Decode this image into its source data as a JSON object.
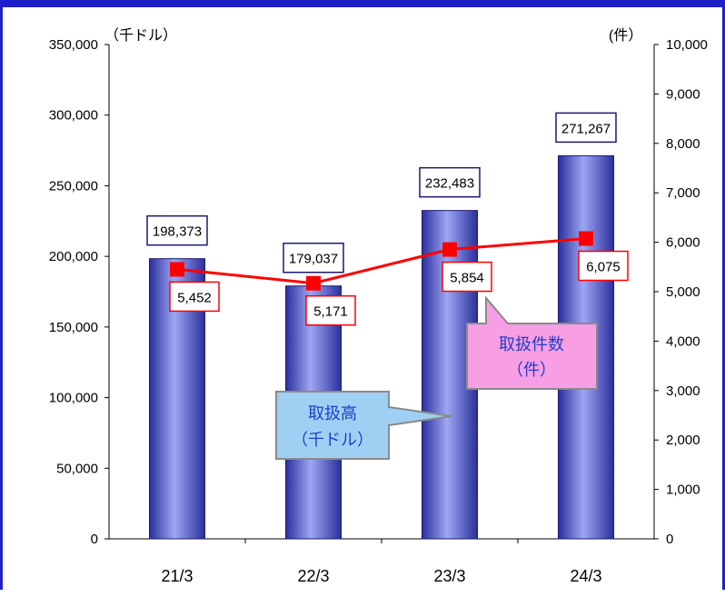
{
  "chart_data": {
    "type": "bar",
    "categories": [
      "21/3",
      "22/3",
      "23/3",
      "24/3"
    ],
    "series": [
      {
        "name": "取扱高",
        "axis": "left",
        "type": "bar",
        "values": [
          198373,
          179037,
          232483,
          271267
        ],
        "labels": [
          "198,373",
          "179,037",
          "232,483",
          "271,267"
        ]
      },
      {
        "name": "取扱件数",
        "axis": "right",
        "type": "line",
        "values": [
          5452,
          5171,
          5854,
          6075
        ],
        "labels": [
          "5,452",
          "5,171",
          "5,854",
          "6,075"
        ]
      }
    ],
    "left_axis": {
      "unit": "（千ドル）",
      "min": 0,
      "max": 350000,
      "step": 50000,
      "ticks": [
        "0",
        "50,000",
        "100,000",
        "150,000",
        "200,000",
        "250,000",
        "300,000",
        "350,000"
      ]
    },
    "right_axis": {
      "unit": "(件）",
      "min": 0,
      "max": 10000,
      "step": 1000,
      "ticks": [
        "0",
        "1,000",
        "2,000",
        "3,000",
        "4,000",
        "5,000",
        "6,000",
        "7,000",
        "8,000",
        "9,000",
        "10,000"
      ]
    },
    "callouts": {
      "bar": {
        "line1": "取扱高",
        "line2": "（千ドル）"
      },
      "line": {
        "line1": "取扱件数",
        "line2": "（件）"
      }
    },
    "colors": {
      "frame": "#1f1fc8",
      "bar": "#5c62d8",
      "line": "#ff0000",
      "bar_callout": "#9fd0f4",
      "line_callout": "#f79ee4"
    },
    "grid": false
  }
}
